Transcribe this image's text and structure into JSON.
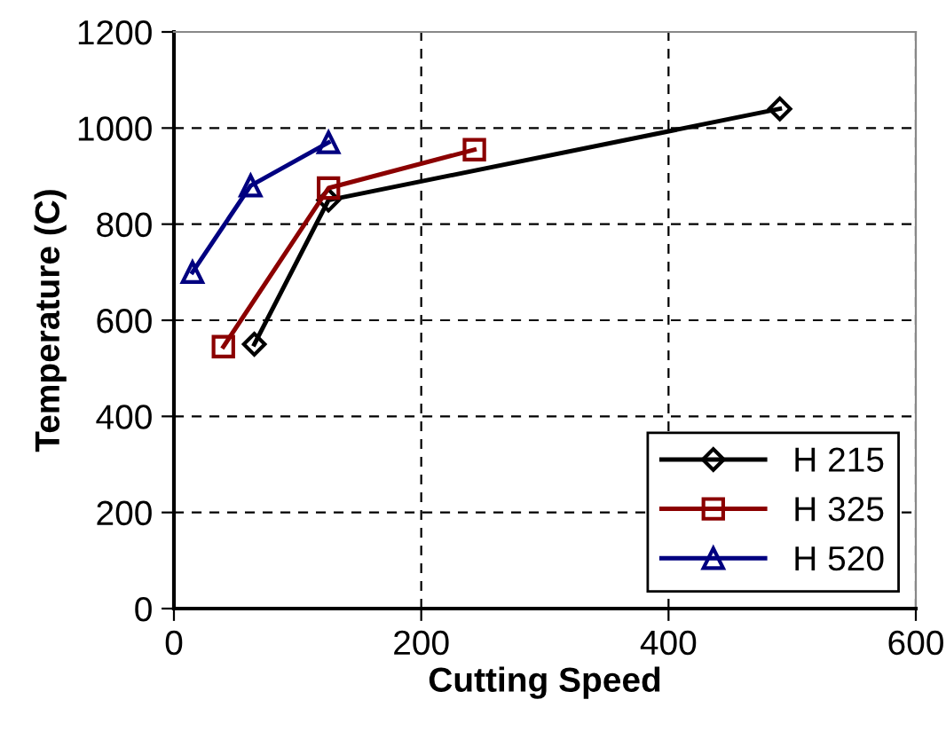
{
  "chart_data": {
    "type": "line",
    "xlabel": "Cutting Speed",
    "ylabel": "Temperature (C)",
    "xlim": [
      0,
      600
    ],
    "xticks": [
      0,
      200,
      400,
      600
    ],
    "ylim": [
      0,
      1200
    ],
    "yticks": [
      0,
      200,
      400,
      600,
      800,
      1000,
      1200
    ],
    "grid": true,
    "legend": "bottom right",
    "line_style": "solid",
    "series": [
      {
        "name": "H 215",
        "color": "#000000",
        "marker": "diamond",
        "x": [
          65,
          125,
          490
        ],
        "values": [
          550,
          850,
          1040
        ]
      },
      {
        "name": "H 325",
        "color": "#8b0000",
        "marker": "square",
        "x": [
          40,
          125,
          243
        ],
        "values": [
          545,
          875,
          955
        ]
      },
      {
        "name": "H 520",
        "color": "#000080",
        "marker": "triangle",
        "x": [
          15,
          62,
          125
        ],
        "values": [
          700,
          880,
          970
        ]
      }
    ]
  }
}
